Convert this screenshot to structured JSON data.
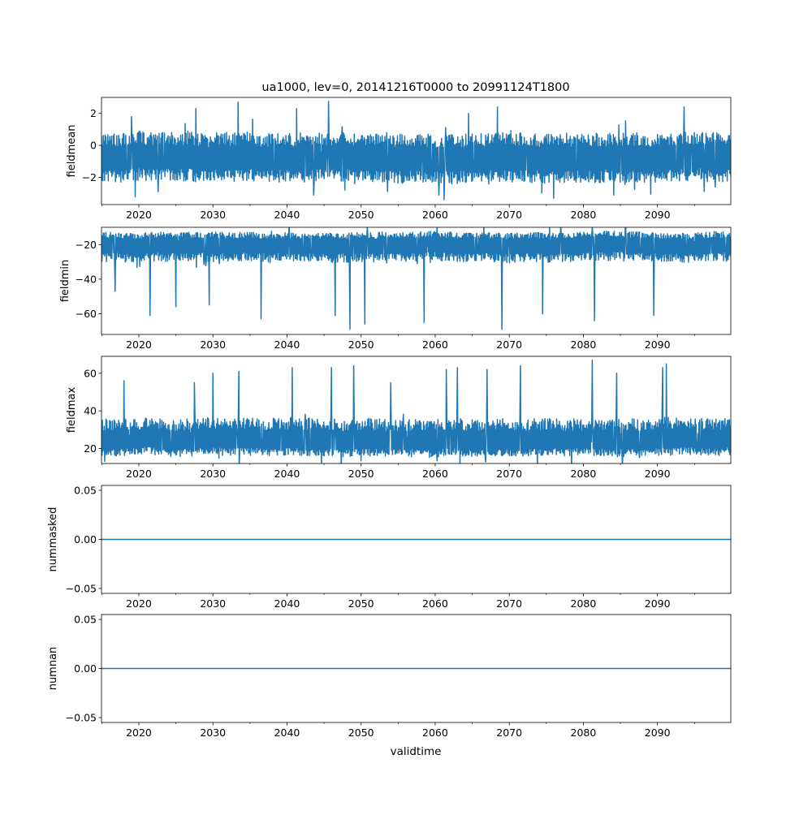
{
  "figure": {
    "title": "ua1000, lev=0, 20141216T0000 to 20991124T1800",
    "xlabel": "validtime"
  },
  "colors": {
    "series": "#1f77b4",
    "axes": "#000000",
    "background": "#ffffff"
  },
  "chart_data": [
    {
      "type": "line",
      "ylabel": "fieldmean",
      "xlim": [
        2014.96,
        2099.9
      ],
      "ylim": [
        -3.7,
        3.0
      ],
      "xticks": [
        2020,
        2030,
        2040,
        2050,
        2060,
        2070,
        2080,
        2090
      ],
      "xtick_labels": [
        "2020",
        "2030",
        "2040",
        "2050",
        "2060",
        "2070",
        "2080",
        "2090"
      ],
      "yticks": [
        -2,
        0,
        2
      ],
      "ytick_labels": [
        "−2",
        "0",
        "2"
      ],
      "grid": false,
      "series": [
        {
          "x_range": [
            2014.96,
            2099.9
          ],
          "baseline": -0.8,
          "typical_band": [
            -2.3,
            0.8
          ],
          "extremes": [
            [
              2033.4,
              2.7
            ],
            [
              2045.6,
              2.75
            ],
            [
              2041.3,
              2.3
            ],
            [
              2027.7,
              2.3
            ],
            [
              2068.4,
              2.4
            ],
            [
              2093.6,
              2.4
            ],
            [
              2064.5,
              2.0
            ],
            [
              2019.0,
              1.8
            ],
            [
              2061.2,
              -3.4
            ],
            [
              2060.5,
              -3.1
            ],
            [
              2043.6,
              -3.1
            ],
            [
              2076.0,
              -3.3
            ],
            [
              2084.1,
              -3.1
            ],
            [
              2097.8,
              -2.6
            ],
            [
              2022.6,
              -2.9
            ]
          ]
        }
      ]
    },
    {
      "type": "line",
      "ylabel": "fieldmin",
      "xlim": [
        2014.96,
        2099.9
      ],
      "ylim": [
        -72,
        -10
      ],
      "xticks": [
        2020,
        2030,
        2040,
        2050,
        2060,
        2070,
        2080,
        2090
      ],
      "xtick_labels": [
        "2020",
        "2030",
        "2040",
        "2050",
        "2060",
        "2070",
        "2080",
        "2090"
      ],
      "yticks": [
        -60,
        -40,
        -20
      ],
      "ytick_labels": [
        "−60",
        "−40",
        "−20"
      ],
      "grid": false,
      "series": [
        {
          "x_range": [
            2014.96,
            2099.9
          ],
          "baseline": -20,
          "typical_band": [
            -30,
            -13
          ],
          "extremes": [
            [
              2048.5,
              -69
            ],
            [
              2069.0,
              -69
            ],
            [
              2050.5,
              -66
            ],
            [
              2058.5,
              -65
            ],
            [
              2081.5,
              -64
            ],
            [
              2021.5,
              -61
            ],
            [
              2036.5,
              -63
            ],
            [
              2046.5,
              -61
            ],
            [
              2089.5,
              -61
            ],
            [
              2074.5,
              -60
            ],
            [
              2025.0,
              -56
            ],
            [
              2029.5,
              -55
            ],
            [
              2016.8,
              -47
            ]
          ]
        }
      ]
    },
    {
      "type": "line",
      "ylabel": "fieldmax",
      "xlim": [
        2014.96,
        2099.9
      ],
      "ylim": [
        12,
        69
      ],
      "xticks": [
        2020,
        2030,
        2040,
        2050,
        2060,
        2070,
        2080,
        2090
      ],
      "xtick_labels": [
        "2020",
        "2030",
        "2040",
        "2050",
        "2060",
        "2070",
        "2080",
        "2090"
      ],
      "yticks": [
        20,
        40,
        60
      ],
      "ytick_labels": [
        "20",
        "40",
        "60"
      ],
      "grid": false,
      "series": [
        {
          "x_range": [
            2014.96,
            2099.9
          ],
          "baseline": 24,
          "typical_band": [
            16,
            36
          ],
          "extremes": [
            [
              2081.2,
              67
            ],
            [
              2091.2,
              65
            ],
            [
              2049.0,
              64
            ],
            [
              2071.5,
              64
            ],
            [
              2040.7,
              63
            ],
            [
              2046.0,
              63
            ],
            [
              2063.0,
              63
            ],
            [
              2067.0,
              62
            ],
            [
              2033.5,
              61
            ],
            [
              2061.5,
              62
            ],
            [
              2030.0,
              60
            ],
            [
              2018.0,
              56
            ],
            [
              2027.5,
              55
            ],
            [
              2054.0,
              55
            ],
            [
              2090.7,
              63
            ],
            [
              2084.5,
              60
            ]
          ]
        }
      ]
    },
    {
      "type": "line",
      "ylabel": "nummasked",
      "xlim": [
        2014.96,
        2099.9
      ],
      "ylim": [
        -0.055,
        0.055
      ],
      "xticks": [
        2020,
        2030,
        2040,
        2050,
        2060,
        2070,
        2080,
        2090
      ],
      "xtick_labels": [
        "2020",
        "2030",
        "2040",
        "2050",
        "2060",
        "2070",
        "2080",
        "2090"
      ],
      "yticks": [
        -0.05,
        0.0,
        0.05
      ],
      "ytick_labels": [
        "−0.05",
        "0.00",
        "0.05"
      ],
      "grid": false,
      "series": [
        {
          "x": [
            2014.96,
            2099.9
          ],
          "y": [
            0,
            0
          ]
        }
      ]
    },
    {
      "type": "line",
      "ylabel": "numnan",
      "xlim": [
        2014.96,
        2099.9
      ],
      "ylim": [
        -0.055,
        0.055
      ],
      "xticks": [
        2020,
        2030,
        2040,
        2050,
        2060,
        2070,
        2080,
        2090
      ],
      "xtick_labels": [
        "2020",
        "2030",
        "2040",
        "2050",
        "2060",
        "2070",
        "2080",
        "2090"
      ],
      "yticks": [
        -0.05,
        0.0,
        0.05
      ],
      "ytick_labels": [
        "−0.05",
        "0.00",
        "0.05"
      ],
      "grid": false,
      "series": [
        {
          "x": [
            2014.96,
            2099.9
          ],
          "y": [
            0,
            0
          ]
        }
      ]
    }
  ]
}
